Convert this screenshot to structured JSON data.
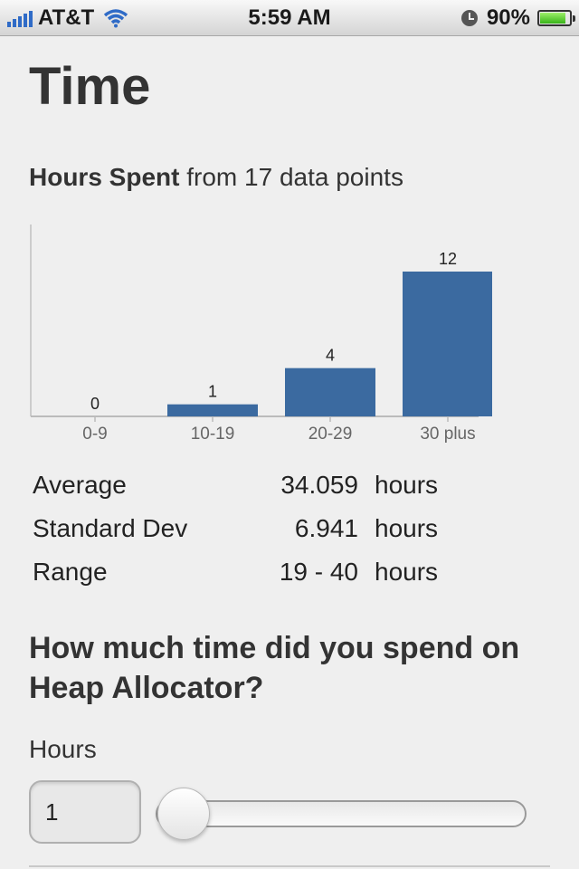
{
  "status_bar": {
    "carrier": "AT&T",
    "time": "5:59 AM",
    "battery_percent": "90%",
    "battery_level": 0.9,
    "signal_bars": 5
  },
  "page": {
    "title": "Time",
    "subtitle_bold": "Hours Spent",
    "subtitle_rest": " from 17 data points"
  },
  "chart_data": {
    "type": "bar",
    "categories": [
      "0-9",
      "10-19",
      "20-29",
      "30 plus"
    ],
    "values": [
      0,
      1,
      4,
      12
    ],
    "bar_color": "#3b6aa0",
    "ylim": [
      0,
      12
    ],
    "grid": false
  },
  "stats": [
    {
      "label": "Average",
      "value": "34.059",
      "unit": "hours"
    },
    {
      "label": "Standard Dev",
      "value": "6.941",
      "unit": "hours"
    },
    {
      "label": "Range",
      "value": "19 - 40",
      "unit": "hours"
    }
  ],
  "question": {
    "text": "How much time did you spend on Heap Allocator?",
    "field_label": "Hours",
    "input_value": "1",
    "slider_min": 0,
    "slider_max": 100,
    "slider_value": 1
  }
}
